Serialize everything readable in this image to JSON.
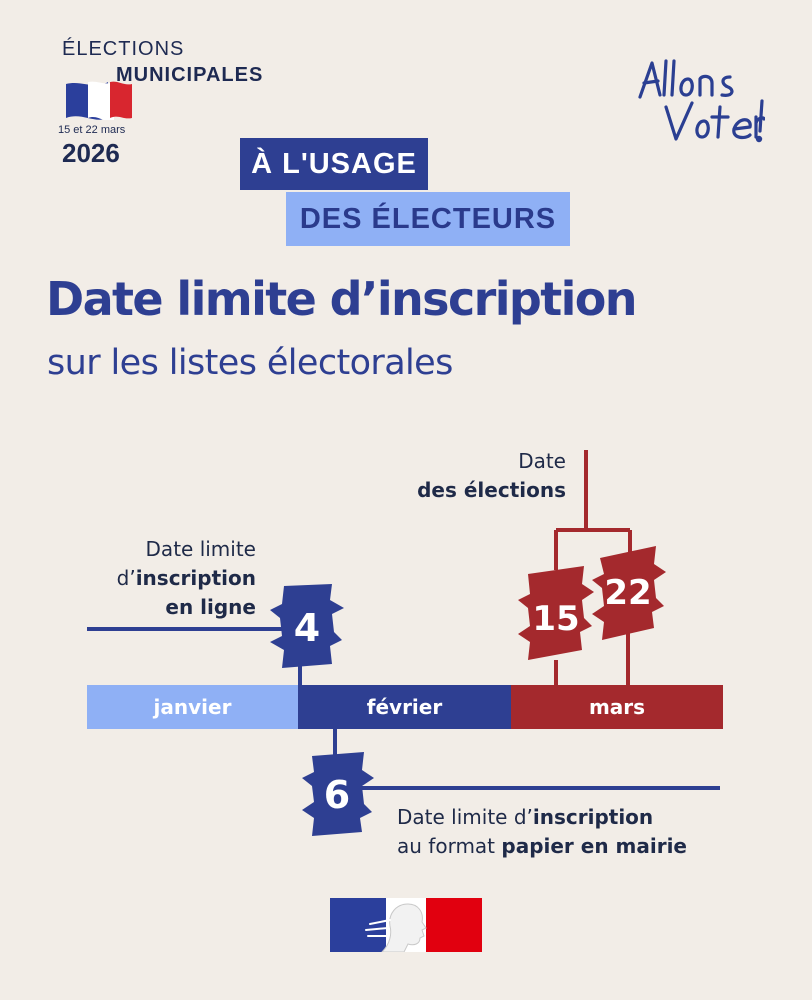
{
  "logo": {
    "elections": "ÉLECTIONS",
    "municipales": "MUNICIPALES",
    "dates": "15 et 22 mars",
    "year": "2026"
  },
  "slogan": "Allons Voter!",
  "tag": {
    "line1": "À L'USAGE",
    "line2": "DES ÉLECTEURS"
  },
  "title": "Date limite d’inscription",
  "subtitle": "sur les listes électorales",
  "timeline": {
    "months": [
      "janvier",
      "février",
      "mars"
    ],
    "online": {
      "line1": "Date limite",
      "line2_pre": "d’",
      "line2_bold": "inscription",
      "line3_bold": "en ligne",
      "day": "4"
    },
    "paper": {
      "line1_pre": "Date limite d’",
      "line1_bold": "inscription",
      "line2_pre": "au format ",
      "line2_bold": "papier en mairie",
      "day": "6"
    },
    "elections": {
      "line1": "Date",
      "line2_bold": "des élections",
      "days": [
        "15",
        "22"
      ]
    }
  },
  "colors": {
    "background": "#f2ede7",
    "navy": "#2e3f92",
    "light_blue": "#8fb0f5",
    "red": "#a4292d"
  }
}
